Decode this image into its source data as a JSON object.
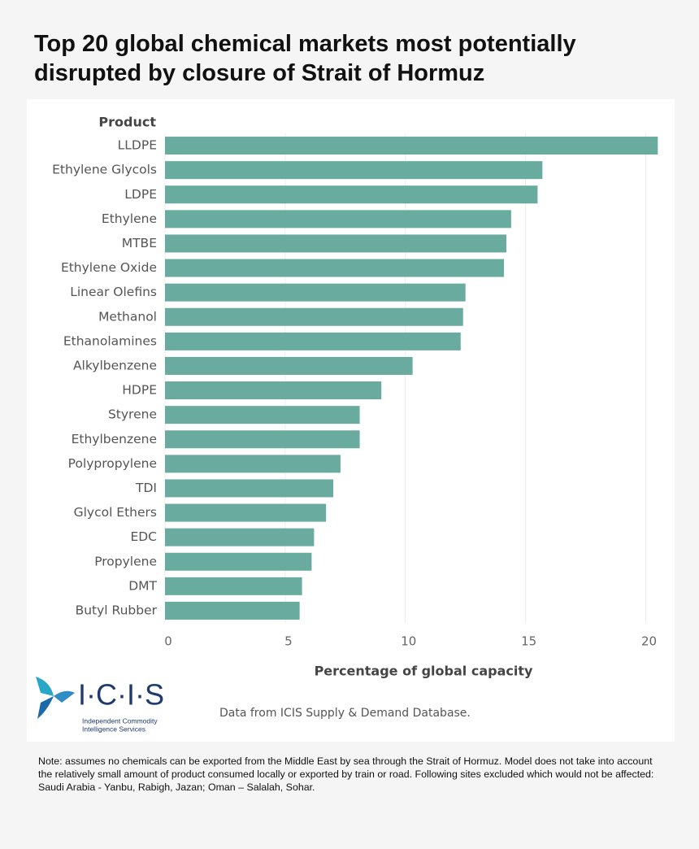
{
  "chart_data": {
    "type": "bar",
    "orientation": "horizontal",
    "title": "Top 20 global chemical markets most potentially disrupted by closure of Strait of Hormuz",
    "y_label": "Product",
    "x_label": "Percentage of global capacity",
    "categories": [
      "LLDPE",
      "Ethylene Glycols",
      "LDPE",
      "Ethylene",
      "MTBE",
      "Ethylene Oxide",
      "Linear Olefins",
      "Methanol",
      "Ethanolamines",
      "Alkylbenzene",
      "HDPE",
      "Styrene",
      "Ethylbenzene",
      "Polypropylene",
      "TDI",
      "Glycol Ethers",
      "EDC",
      "Propylene",
      "DMT",
      "Butyl Rubber"
    ],
    "values": [
      20.5,
      15.7,
      15.5,
      14.4,
      14.2,
      14.1,
      12.5,
      12.4,
      12.3,
      10.3,
      9.0,
      8.1,
      8.1,
      7.3,
      7.0,
      6.7,
      6.2,
      6.1,
      5.7,
      5.6
    ],
    "color": "#6aaba0",
    "xlim": [
      0,
      21.2
    ],
    "xticks": [
      0,
      5,
      10,
      15,
      20
    ],
    "grid": true,
    "source": "Data from ICIS Supply & Demand Database.",
    "note": "Note: assumes no chemicals can be exported from the Middle East by sea through the Strait of Hormuz. Model does not take into account the relatively small amount of product consumed locally or exported by train or road. Following sites excluded which would not be affected: Saudi Arabia - Yanbu, Rabigh, Jazan; Oman – Salalah, Sohar.",
    "logo": {
      "name": "I·C·I·S",
      "tagline": [
        "Independent Commodity",
        "Intelligence Services"
      ]
    }
  }
}
